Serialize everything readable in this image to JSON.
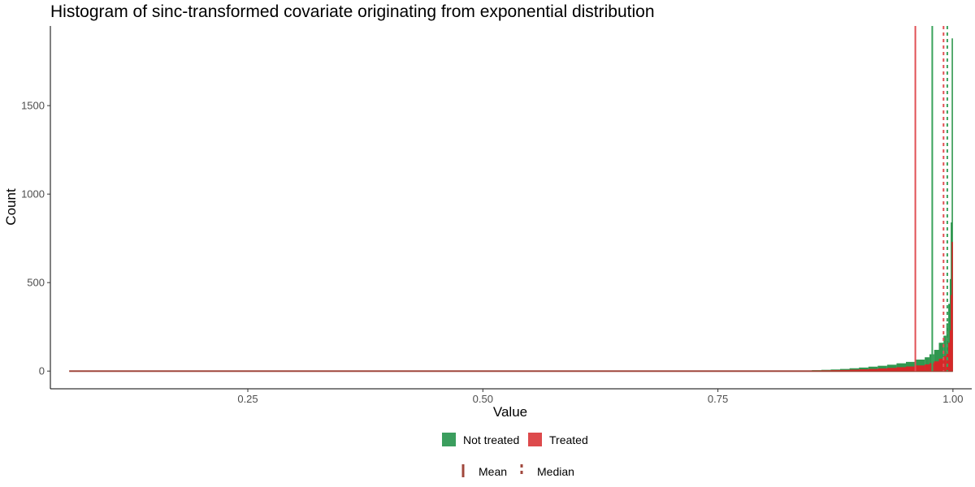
{
  "chart_data": {
    "type": "bar",
    "title": "Histogram of sinc-transformed covariate originating from exponential distribution",
    "xlabel": "Value",
    "ylabel": "Count",
    "xlim": [
      0.04,
      1.02
    ],
    "ylim": [
      -100,
      1950
    ],
    "x_ticks": [
      0.25,
      0.5,
      0.75,
      1.0
    ],
    "x_tick_labels": [
      "0.25",
      "0.50",
      "0.75",
      "1.00"
    ],
    "y_ticks": [
      0,
      500,
      1000,
      1500
    ],
    "y_tick_labels": [
      "0",
      "500",
      "1000",
      "1500"
    ],
    "grid": false,
    "legend_position": "bottom",
    "series": [
      {
        "name": "Not treated",
        "color": "#1a8c3c",
        "x": [
          0.86,
          0.87,
          0.88,
          0.89,
          0.9,
          0.91,
          0.92,
          0.93,
          0.94,
          0.95,
          0.96,
          0.97,
          0.975,
          0.98,
          0.985,
          0.99,
          0.993,
          0.995,
          0.997,
          0.998,
          0.999,
          1.0
        ],
        "values": [
          5,
          7,
          9,
          12,
          16,
          20,
          25,
          30,
          36,
          44,
          52,
          65,
          78,
          95,
          120,
          160,
          200,
          270,
          380,
          520,
          840,
          1880
        ]
      },
      {
        "name": "Treated",
        "color": "#d62728",
        "x": [
          0.86,
          0.87,
          0.88,
          0.89,
          0.9,
          0.91,
          0.92,
          0.93,
          0.94,
          0.95,
          0.96,
          0.97,
          0.975,
          0.98,
          0.985,
          0.99,
          0.993,
          0.995,
          0.997,
          0.998,
          0.999,
          1.0
        ],
        "values": [
          3,
          4,
          5,
          6,
          8,
          10,
          12,
          15,
          18,
          22,
          26,
          32,
          38,
          45,
          55,
          70,
          85,
          110,
          160,
          230,
          430,
          730
        ]
      }
    ],
    "reference_lines": [
      {
        "series": "Treated",
        "stat": "Mean",
        "x": 0.96,
        "color": "#e05055",
        "style": "solid"
      },
      {
        "series": "Not treated",
        "stat": "Mean",
        "x": 0.978,
        "color": "#3aa35c",
        "style": "solid"
      },
      {
        "series": "Treated",
        "stat": "Median",
        "x": 0.99,
        "color": "#e05055",
        "style": "dashed"
      },
      {
        "series": "Not treated",
        "stat": "Median",
        "x": 0.994,
        "color": "#3aa35c",
        "style": "dashed"
      }
    ],
    "legend_fill": [
      {
        "label": "Not treated",
        "color": "#3b9e5e"
      },
      {
        "label": "Treated",
        "color": "#dd4a4c"
      }
    ],
    "legend_linetype": [
      {
        "label": "Mean",
        "style": "solid",
        "color": "#a0473c"
      },
      {
        "label": "Median",
        "style": "dashed",
        "color": "#a0473c"
      }
    ]
  }
}
